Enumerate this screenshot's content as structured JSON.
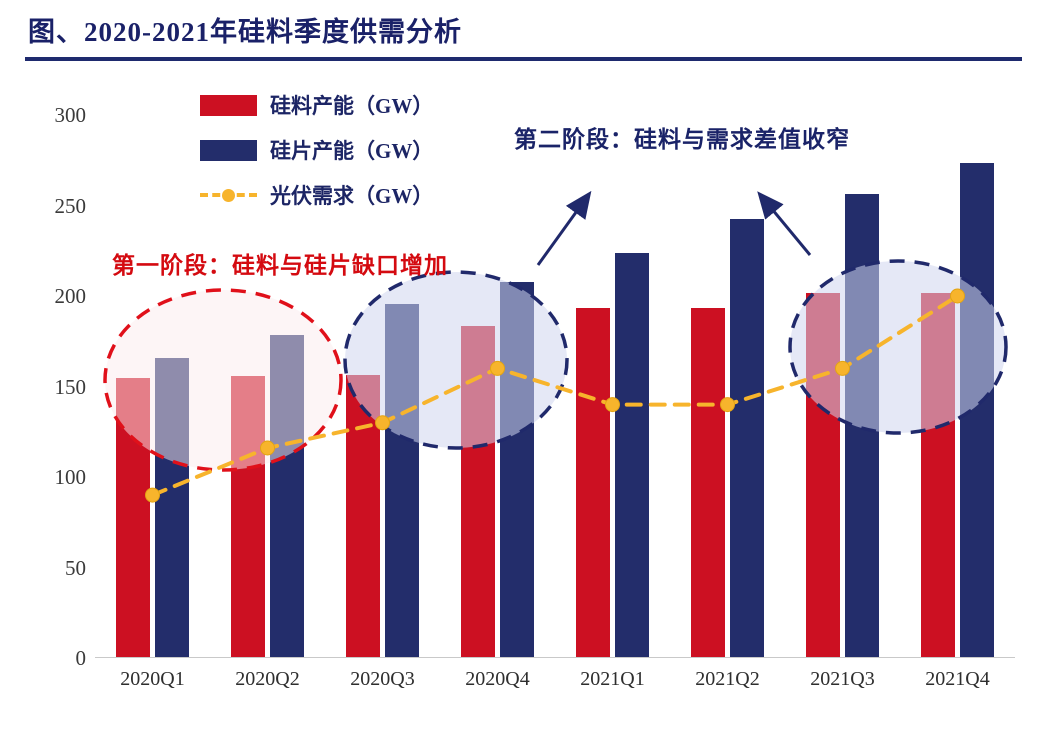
{
  "header": {
    "title": "图、2020-2021年硅料季度供需分析"
  },
  "annotations": {
    "phase1": "第一阶段：硅料与硅片缺口增加",
    "phase2": "第二阶段：硅料与需求差值收窄"
  },
  "colors": {
    "accent_navy": "#20296b",
    "accent_red": "#cc1022",
    "accent_yellow": "#f7b42c",
    "annotation_red": "#d40a10",
    "title_navy": "#1a2168"
  },
  "chart_data": {
    "type": "bar",
    "title": "2020-2021年硅料季度供需分析",
    "categories": [
      "2020Q1",
      "2020Q2",
      "2020Q3",
      "2020Q4",
      "2021Q1",
      "2021Q2",
      "2021Q3",
      "2021Q4"
    ],
    "series": [
      {
        "name": "硅料产能（GW）",
        "slug": "silicon-capacity",
        "type": "bar",
        "color": "#cc1022",
        "values": [
          154,
          155,
          156,
          183,
          193,
          193,
          201,
          201
        ]
      },
      {
        "name": "硅片产能（GW）",
        "slug": "wafer-capacity",
        "type": "bar",
        "color": "#232d6b",
        "values": [
          165,
          178,
          195,
          207,
          223,
          242,
          256,
          273
        ]
      },
      {
        "name": "光伏需求（GW）",
        "slug": "pv-demand",
        "type": "line",
        "color": "#f7b42c",
        "values": [
          90,
          116,
          130,
          160,
          140,
          140,
          160,
          200
        ]
      }
    ],
    "xlabel": "",
    "ylabel": "",
    "ylim": [
      0,
      300
    ],
    "yticks": [
      0,
      50,
      100,
      150,
      200,
      250,
      300
    ],
    "grid": false,
    "legend_position": "top-left"
  }
}
